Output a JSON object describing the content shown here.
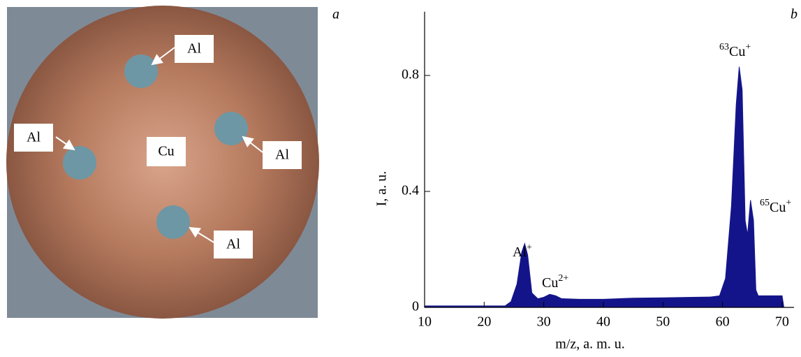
{
  "photo": {
    "panel_label": "a",
    "labels": [
      "Al",
      "Al",
      "Cu",
      "Al",
      "Al"
    ]
  },
  "chart_data": {
    "type": "area",
    "panel_label": "b",
    "x_label": "m/z, a. m. u.",
    "y_label": "I, a. u.",
    "x": [
      10,
      23.5,
      24.5,
      25.5,
      26.3,
      26.8,
      27.3,
      28,
      29,
      30,
      31,
      32,
      33,
      36,
      40,
      45,
      50,
      55,
      58,
      59.5,
      60.5,
      61.5,
      62.3,
      62.8,
      63.3,
      63.8,
      64.2,
      64.7,
      65.2,
      65.6,
      66,
      70,
      70.3
    ],
    "series": [
      {
        "color": "#14148a",
        "values": [
          0.005,
          0.005,
          0.02,
          0.08,
          0.19,
          0.22,
          0.18,
          0.05,
          0.03,
          0.035,
          0.045,
          0.04,
          0.03,
          0.028,
          0.028,
          0.032,
          0.033,
          0.035,
          0.036,
          0.04,
          0.1,
          0.35,
          0.7,
          0.83,
          0.75,
          0.3,
          0.25,
          0.37,
          0.3,
          0.06,
          0.04,
          0.04,
          0
        ]
      }
    ],
    "annotations": [
      {
        "pre": "",
        "base": "Al",
        "sup": "+"
      },
      {
        "pre": "",
        "base": "Cu",
        "sup": "2+"
      },
      {
        "pre": "63",
        "base": "Cu",
        "sup": "+"
      },
      {
        "pre": "65",
        "base": "Cu",
        "sup": "+"
      }
    ],
    "xlim": [
      10,
      72
    ],
    "ylim": [
      0,
      1.02
    ],
    "xticks": [
      10,
      20,
      30,
      40,
      50,
      60,
      70
    ],
    "yticks": [
      0,
      0.4,
      0.8
    ]
  }
}
